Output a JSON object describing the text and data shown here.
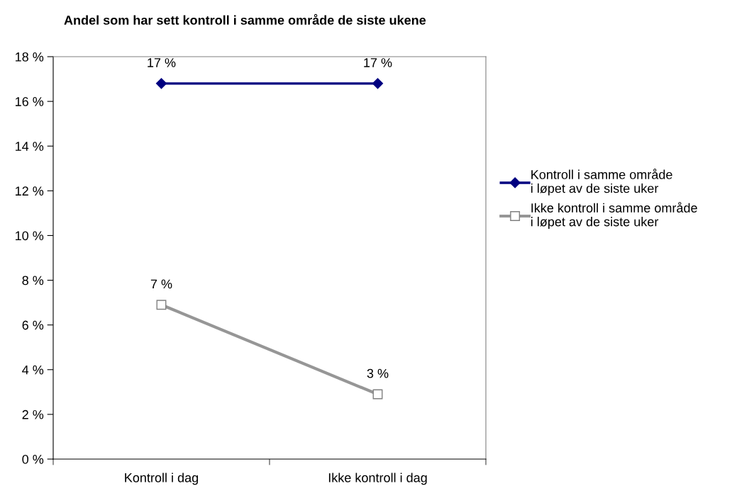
{
  "chart_data": {
    "type": "line",
    "title": "Andel som har sett kontroll i samme område de siste ukene",
    "categories": [
      "Kontroll i dag",
      "Ikke kontroll i dag"
    ],
    "series": [
      {
        "name": "Kontroll i samme område\ni løpet av de siste uker",
        "color": "#000080",
        "values": [
          16.8,
          16.8
        ],
        "marker": "diamond",
        "value_labels": [
          "17 %",
          "17 %"
        ]
      },
      {
        "name": "Ikke kontroll i samme område\ni løpet av de siste uker",
        "color": "#969696",
        "values": [
          6.9,
          2.9
        ],
        "marker": "square",
        "value_labels": [
          "7 %",
          "3 %"
        ]
      }
    ],
    "ylim": [
      0,
      18
    ],
    "yticks": [
      {
        "value": 0,
        "label": "0 %"
      },
      {
        "value": 2,
        "label": "2 %"
      },
      {
        "value": 4,
        "label": "4 %"
      },
      {
        "value": 6,
        "label": "6 %"
      },
      {
        "value": 8,
        "label": "8 %"
      },
      {
        "value": 10,
        "label": "10 %"
      },
      {
        "value": 12,
        "label": "12 %"
      },
      {
        "value": 14,
        "label": "14 %"
      },
      {
        "value": 16,
        "label": "16 %"
      },
      {
        "value": 18,
        "label": "18 %"
      }
    ],
    "grid": false,
    "legend": "right",
    "line_style": "solid"
  }
}
